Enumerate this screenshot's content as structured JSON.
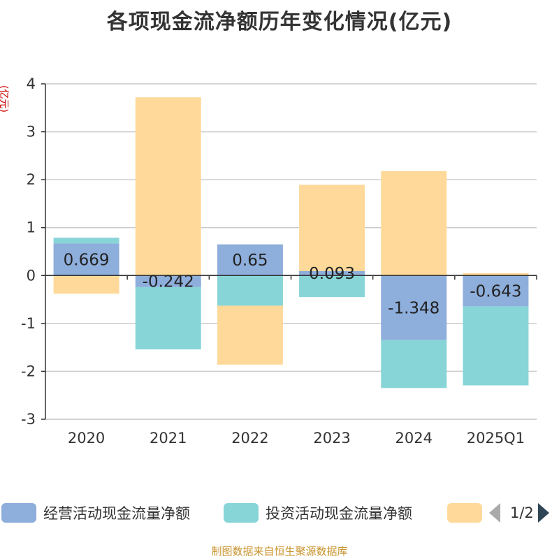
{
  "page": {
    "title": "各项现金流净额历年变化情况(亿元)",
    "unit_label": "(亿元)",
    "source": "制图数据来自恒生聚源数据库",
    "pager": "1/2"
  },
  "colors": {
    "operating": "#8eaedb",
    "investing": "#88d5d8",
    "financing": "#ffd99a",
    "axis": "#333333",
    "grid": "#cccccc"
  },
  "legend": [
    {
      "label": "经营活动现金流量净额",
      "color": "#8eaedb"
    },
    {
      "label": "投资活动现金流量净额",
      "color": "#88d5d8"
    },
    {
      "label": "",
      "color": "#ffd99a"
    }
  ],
  "chart_data": {
    "type": "bar",
    "stacked": true,
    "title": "各项现金流净额历年变化情况(亿元)",
    "ylabel": "(亿元)",
    "categories": [
      "2020",
      "2021",
      "2022",
      "2023",
      "2024",
      "2025Q1"
    ],
    "ylim": [
      -3,
      4
    ],
    "yticks": [
      -3,
      -2,
      -1,
      0,
      1,
      2,
      3,
      4
    ],
    "series": [
      {
        "name": "经营活动现金流量净额",
        "values": [
          0.669,
          -0.242,
          0.65,
          0.093,
          -1.348,
          -0.643
        ],
        "labels": [
          "0.669",
          "-0.242",
          "0.65",
          "0.093",
          "-1.348",
          "-0.643"
        ]
      },
      {
        "name": "投资活动现金流量净额",
        "values": [
          0.12,
          -1.3,
          -0.63,
          -0.45,
          -1.0,
          -1.65
        ]
      },
      {
        "name": "",
        "values": [
          -0.38,
          3.72,
          -1.23,
          1.8,
          2.18,
          0.05
        ]
      }
    ]
  }
}
